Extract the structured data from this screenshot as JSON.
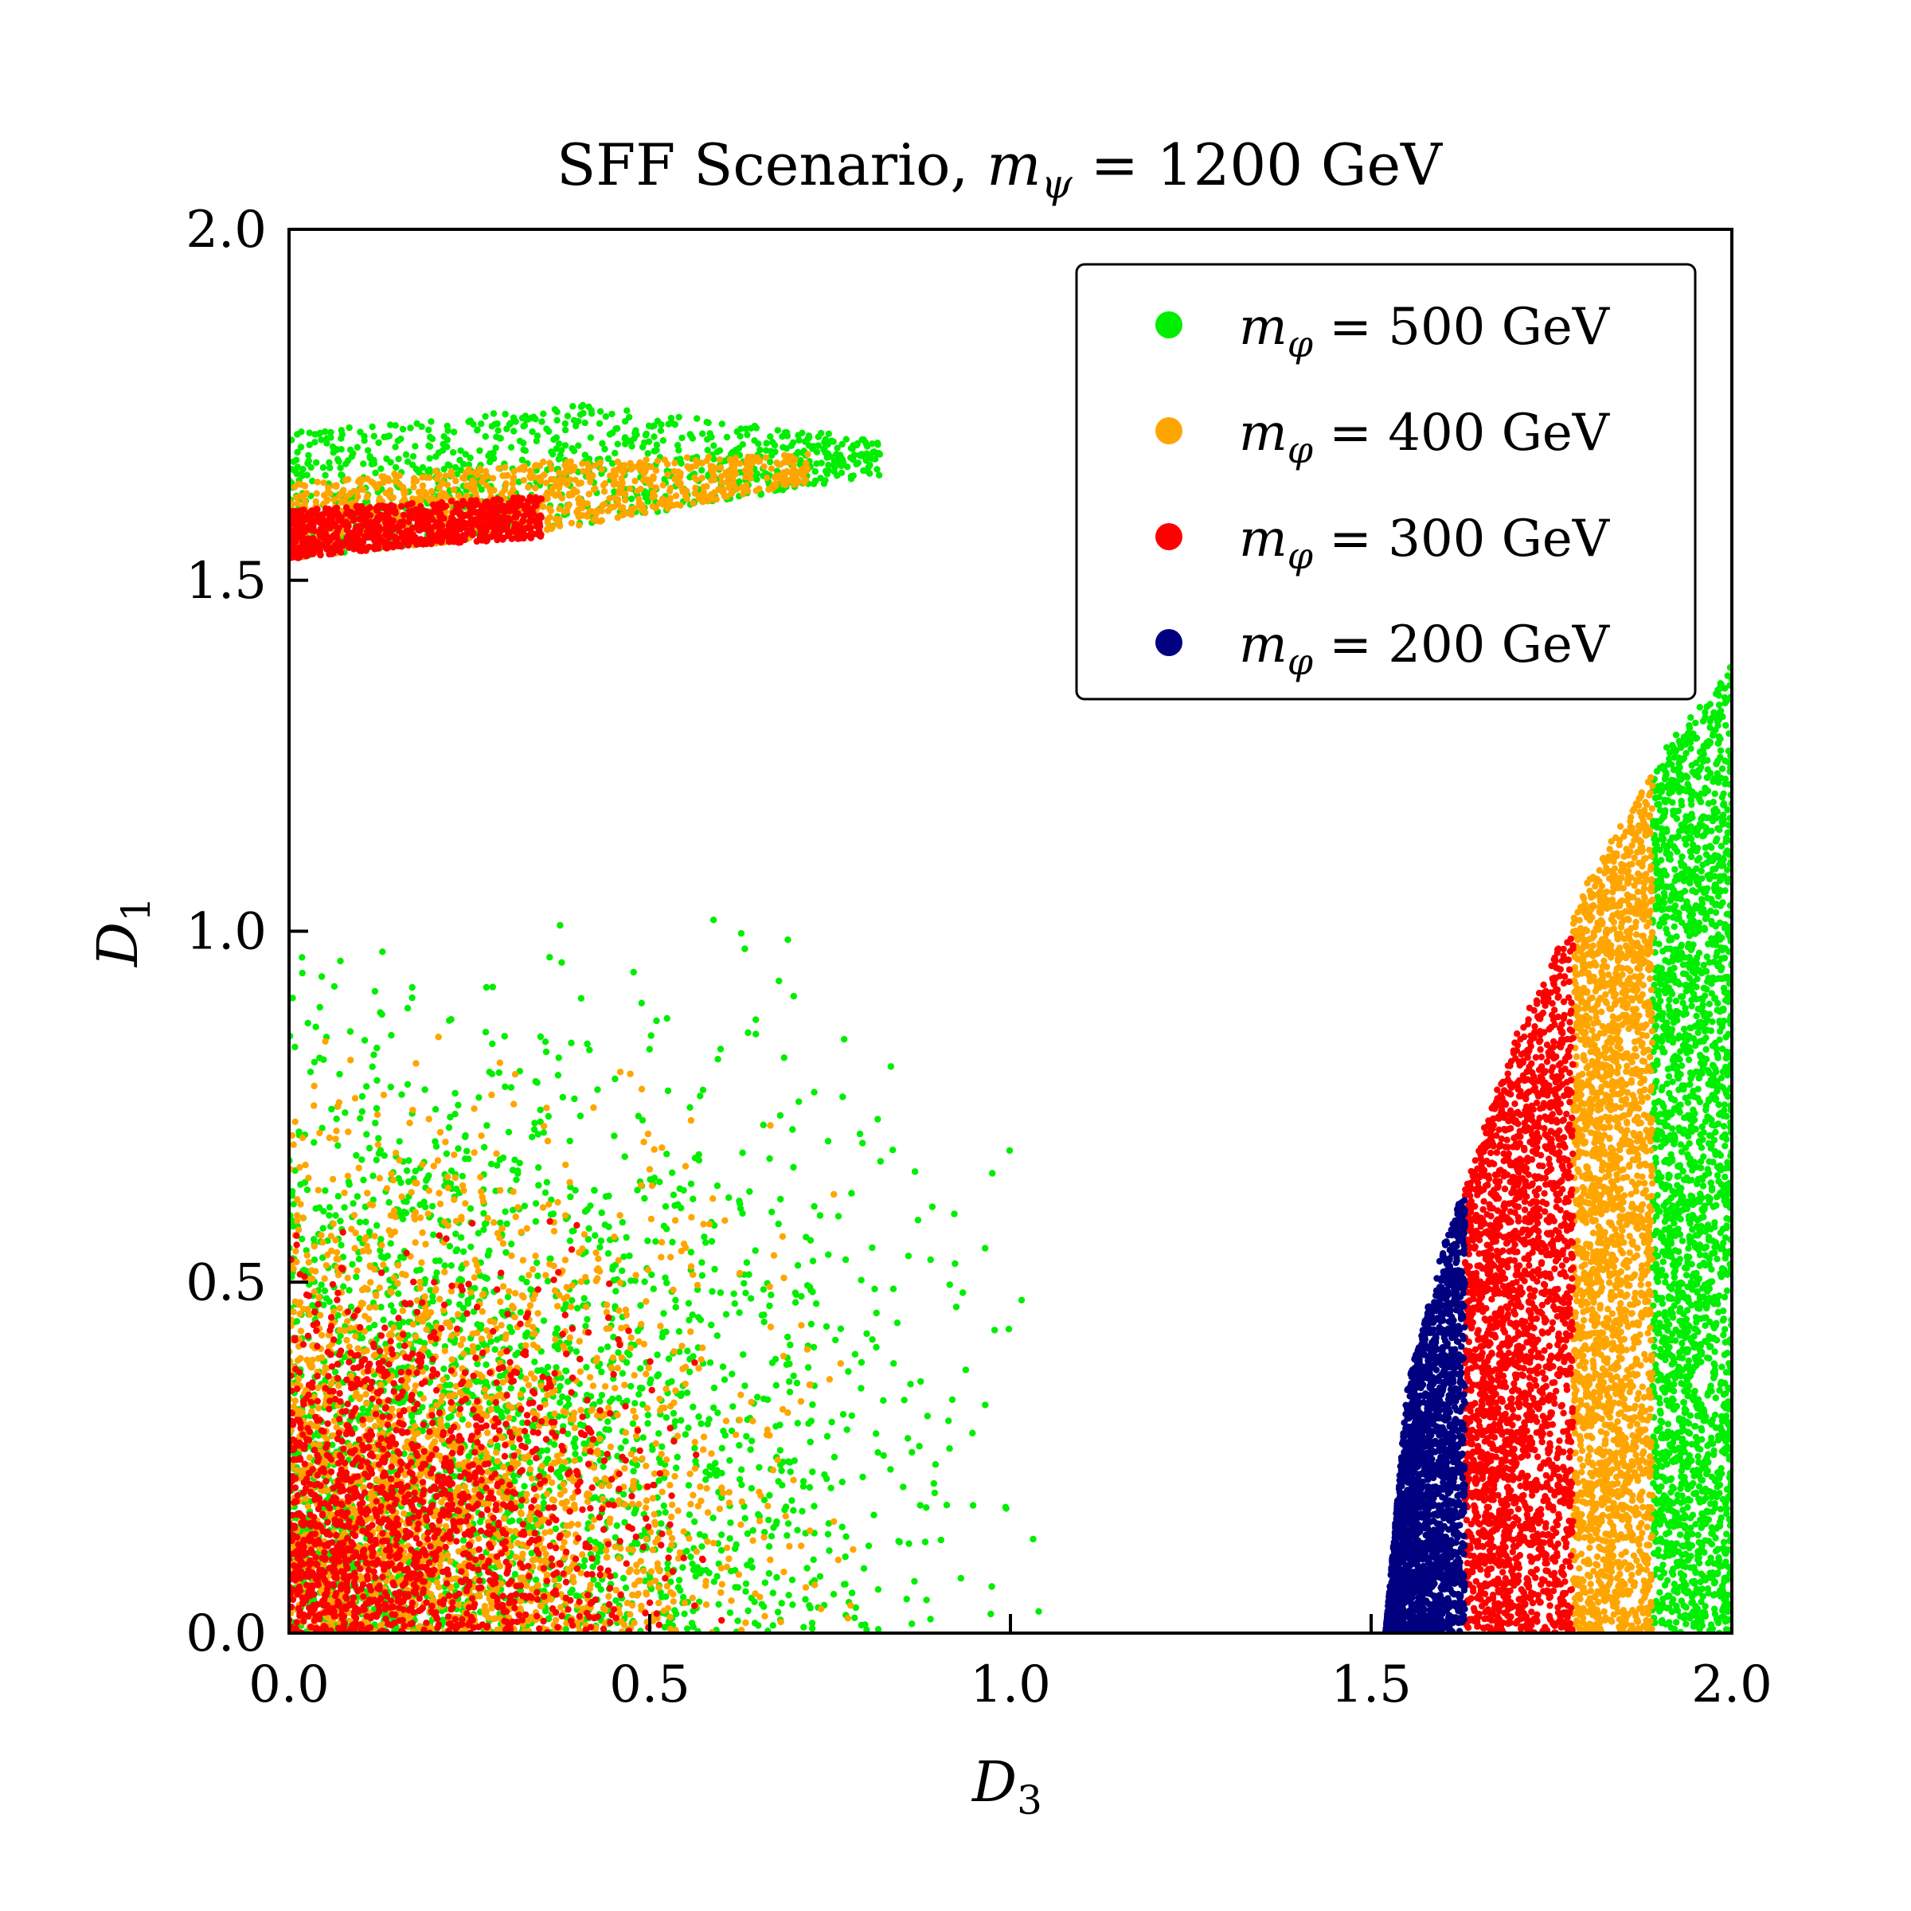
{
  "chart_data": {
    "type": "scatter",
    "title": "SFF Scenario, m_ψ = 1200 GeV",
    "title_parts": {
      "prefix": "SFF Scenario, ",
      "symbol": "m",
      "subscript": "ψ",
      "suffix": " = 1200 GeV"
    },
    "xlabel": {
      "symbol": "D",
      "subscript": "3"
    },
    "ylabel": {
      "symbol": "D",
      "subscript": "1"
    },
    "xlim": [
      0.0,
      2.0
    ],
    "ylim": [
      0.0,
      2.0
    ],
    "xticks": [
      "0.0",
      "0.5",
      "1.0",
      "1.5",
      "2.0"
    ],
    "yticks": [
      "0.0",
      "0.5",
      "1.0",
      "1.5",
      "2.0"
    ],
    "grid": false,
    "legend_position": "top-right",
    "series": [
      {
        "name": "m_φ = 500 GeV",
        "label_symbol": "m",
        "label_subscript": "φ",
        "label_suffix": " = 500 GeV",
        "color": "#00ee00",
        "regions": [
          {
            "kind": "band",
            "x_range": [
              0.0,
              0.82
            ],
            "y_lower": [
              1.53,
              1.58,
              1.65
            ],
            "y_upper": [
              1.71,
              1.75,
              1.7
            ]
          },
          {
            "kind": "cloud",
            "x_range": [
              0.0,
              1.04
            ],
            "y_range": [
              0.0,
              1.02
            ]
          },
          {
            "kind": "strip",
            "x_range": [
              1.89,
              2.0
            ],
            "y_range": [
              0.0,
              1.38
            ]
          }
        ]
      },
      {
        "name": "m_φ = 400 GeV",
        "label_symbol": "m",
        "label_subscript": "φ",
        "label_suffix": " = 400 GeV",
        "color": "#ffa500",
        "regions": [
          {
            "kind": "band",
            "x_range": [
              0.0,
              0.72
            ],
            "y_lower": [
              1.53,
              1.57,
              1.64
            ],
            "y_upper": [
              1.64,
              1.67,
              1.68
            ]
          },
          {
            "kind": "cloud",
            "x_range": [
              0.0,
              0.8
            ],
            "y_range": [
              0.0,
              0.85
            ]
          },
          {
            "kind": "strip",
            "x_range": [
              1.78,
              1.89
            ],
            "y_range": [
              0.0,
              1.22
            ]
          }
        ]
      },
      {
        "name": "m_φ = 300 GeV",
        "label_symbol": "m",
        "label_subscript": "φ",
        "label_suffix": " = 300 GeV",
        "color": "#ff0000",
        "regions": [
          {
            "kind": "band",
            "x_range": [
              0.0,
              0.35
            ],
            "y_lower": [
              1.53,
              1.55,
              1.56
            ],
            "y_upper": [
              1.6,
              1.61,
              1.62
            ]
          },
          {
            "kind": "cloud",
            "x_range": [
              0.0,
              0.6
            ],
            "y_range": [
              0.0,
              0.6
            ]
          },
          {
            "kind": "strip",
            "x_range": [
              1.63,
              1.78
            ],
            "y_range": [
              0.0,
              0.99
            ]
          }
        ]
      },
      {
        "name": "m_φ = 200 GeV",
        "label_symbol": "m",
        "label_subscript": "φ",
        "label_suffix": " = 200 GeV",
        "color": "#000080",
        "regions": [
          {
            "kind": "strip",
            "x_range": [
              1.52,
              1.63
            ],
            "y_range": [
              0.0,
              0.62
            ]
          }
        ]
      }
    ],
    "boundary": {
      "description": "left edge of right-hand region",
      "points": [
        [
          1.52,
          0.0
        ],
        [
          1.55,
          0.35
        ],
        [
          1.6,
          0.55
        ],
        [
          1.7,
          0.85
        ],
        [
          1.8,
          1.07
        ],
        [
          1.9,
          1.25
        ],
        [
          2.0,
          1.38
        ]
      ]
    }
  }
}
